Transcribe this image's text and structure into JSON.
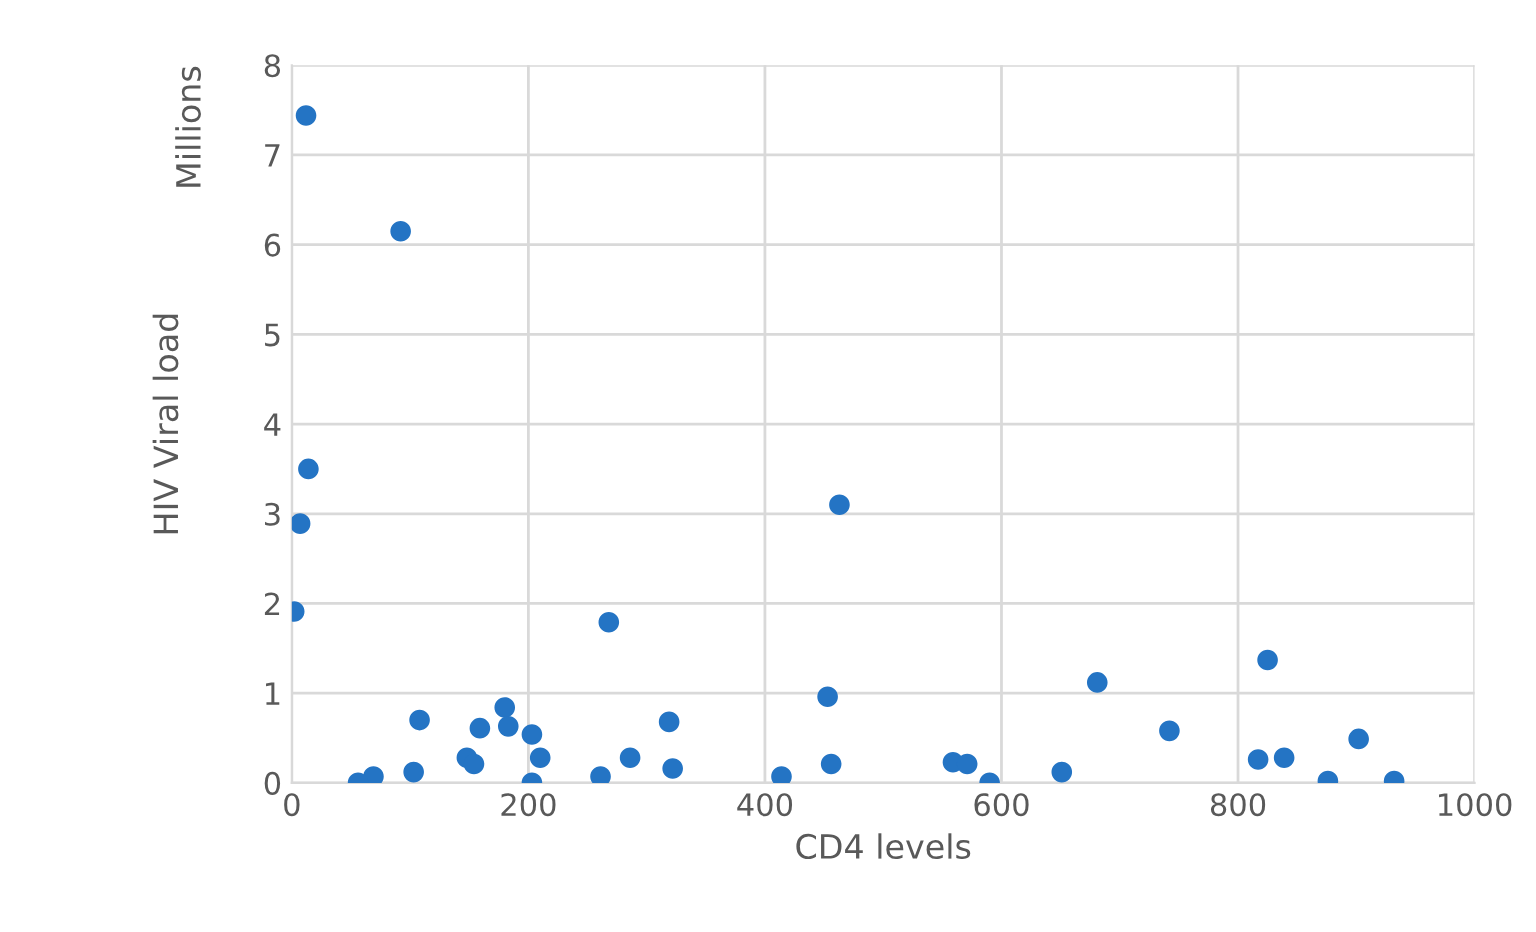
{
  "chart_data": {
    "type": "scatter",
    "xlabel": "CD4 levels",
    "ylabel": "HIV Viral load",
    "annotations": [
      "Millions"
    ],
    "xlim": [
      0,
      1000
    ],
    "xticks": [
      0,
      200,
      400,
      600,
      800,
      1000
    ],
    "ylim": [
      0,
      8
    ],
    "yticks": [
      0,
      1,
      2,
      3,
      4,
      5,
      6,
      7,
      8
    ],
    "grid": true,
    "marker": "circle",
    "legend": false,
    "series": [
      {
        "color": "#2474c4",
        "x": [
          12,
          92,
          14,
          7,
          2,
          463,
          268,
          825,
          681,
          453,
          180,
          108,
          319,
          159,
          183,
          203,
          742,
          902,
          148,
          154,
          210,
          286,
          322,
          456,
          559,
          571,
          817,
          839,
          103,
          69,
          56,
          261,
          203,
          414,
          590,
          651,
          876,
          932
        ],
        "values": [
          7.44,
          6.15,
          3.5,
          2.89,
          1.91,
          3.1,
          1.79,
          1.37,
          1.12,
          0.96,
          0.84,
          0.7,
          0.68,
          0.61,
          0.63,
          0.54,
          0.58,
          0.49,
          0.28,
          0.21,
          0.28,
          0.28,
          0.16,
          0.21,
          0.23,
          0.21,
          0.26,
          0.28,
          0.12,
          0.07,
          0.0,
          0.07,
          0.0,
          0.07,
          0.0,
          0.12,
          0.02,
          0.02
        ]
      }
    ]
  }
}
